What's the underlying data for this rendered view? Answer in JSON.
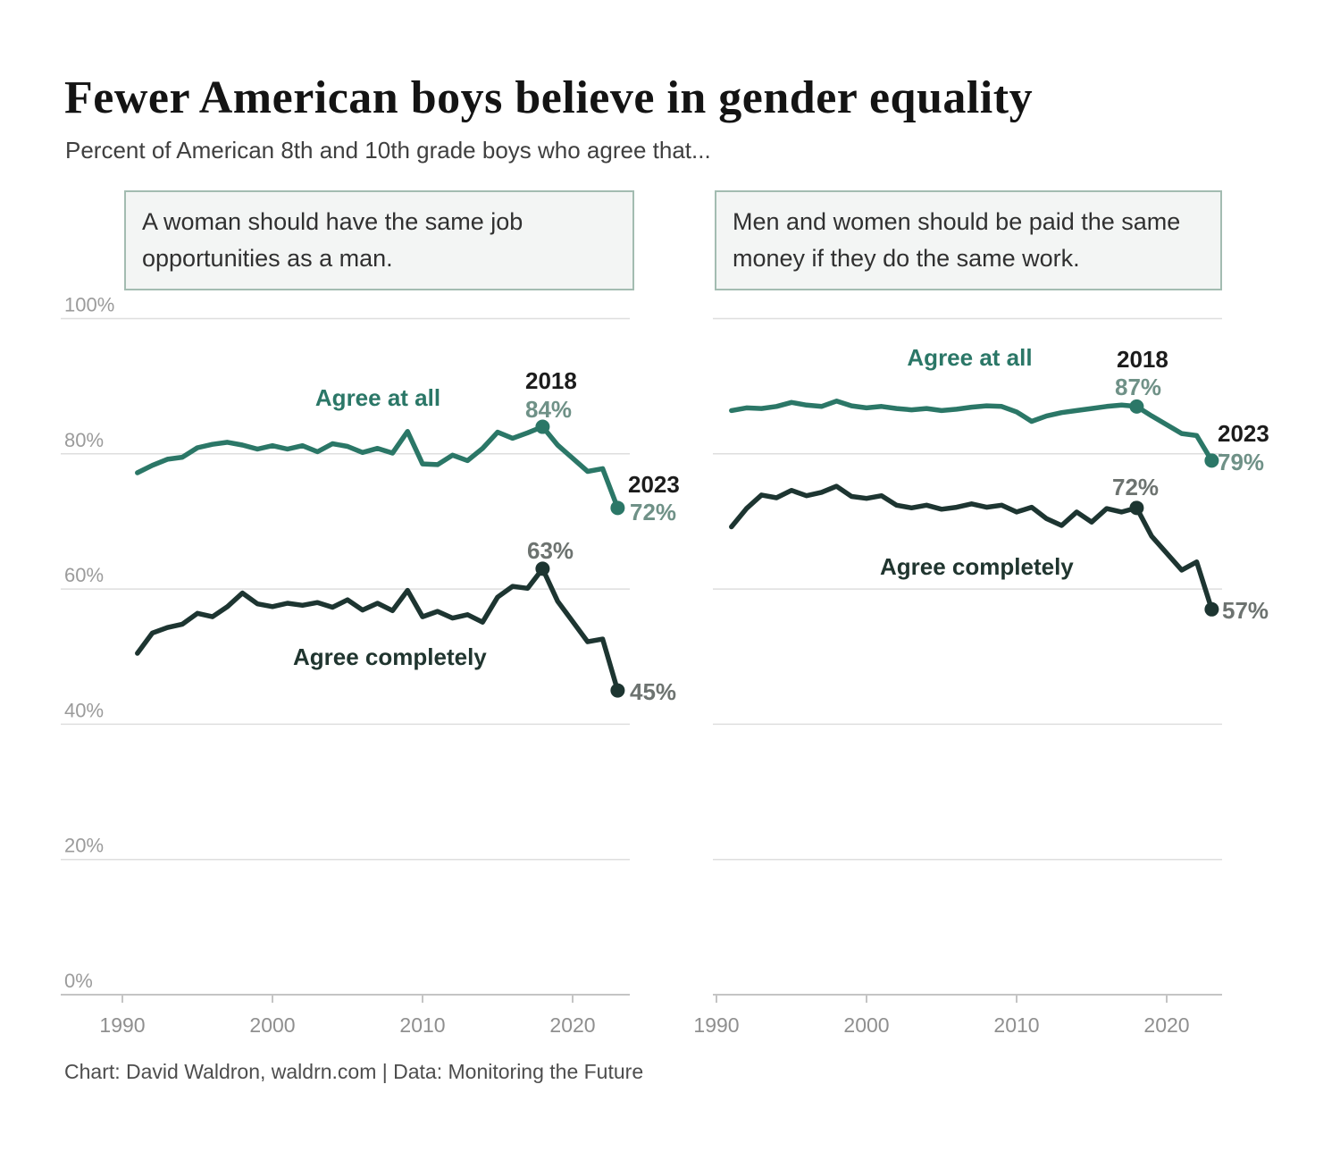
{
  "page": {
    "title": "Fewer American boys believe in gender equality",
    "subtitle": "Percent of American 8th and 10th grade boys who agree that...",
    "footer": "Chart: David Waldron, waldrn.com | Data: Monitoring the Future"
  },
  "colors": {
    "agree_at_all": "#2b7767",
    "agree_completely": "#1d3531",
    "grid": "#dedede",
    "axis": "#c4c4c4",
    "y_tick_label": "#9b9b9b",
    "x_tick_label": "#8f8f8f"
  },
  "chart_data": [
    {
      "type": "line",
      "title": "A woman should have the same job opportunities as a man.",
      "xlabel": "",
      "ylabel": "",
      "xlim": [
        1990,
        2024
      ],
      "ylim": [
        0,
        100
      ],
      "grid": true,
      "x_ticks": [
        1990,
        2000,
        2010,
        2020
      ],
      "y_ticks": [
        100,
        80,
        60,
        40,
        20,
        0
      ],
      "marked_years": [
        2018,
        2023
      ],
      "labels": {
        "series_top": "Agree at all",
        "series_bottom": "Agree completely",
        "peak_year": "2018",
        "peak_top_value": "84%",
        "end_year": "2023",
        "end_top_value": "72%",
        "peak_bottom_value": "63%",
        "end_bottom_value": "45%"
      },
      "series": [
        {
          "name": "Agree at all",
          "color_key": "agree_at_all",
          "points": [
            [
              1991,
              77.2
            ],
            [
              1992,
              78.3
            ],
            [
              1993,
              79.2
            ],
            [
              1994,
              79.5
            ],
            [
              1995,
              80.9
            ],
            [
              1996,
              81.4
            ],
            [
              1997,
              81.7
            ],
            [
              1998,
              81.3
            ],
            [
              1999,
              80.7
            ],
            [
              2000,
              81.2
            ],
            [
              2001,
              80.7
            ],
            [
              2002,
              81.2
            ],
            [
              2003,
              80.3
            ],
            [
              2004,
              81.5
            ],
            [
              2005,
              81.1
            ],
            [
              2006,
              80.2
            ],
            [
              2007,
              80.8
            ],
            [
              2008,
              80.1
            ],
            [
              2009,
              83.3
            ],
            [
              2010,
              78.5
            ],
            [
              2011,
              78.4
            ],
            [
              2012,
              79.8
            ],
            [
              2013,
              79.0
            ],
            [
              2014,
              80.8
            ],
            [
              2015,
              83.2
            ],
            [
              2016,
              82.3
            ],
            [
              2017,
              83.1
            ],
            [
              2018,
              84
            ],
            [
              2019,
              81.3
            ],
            [
              2021,
              77.4
            ],
            [
              2022,
              77.8
            ],
            [
              2023,
              72
            ]
          ]
        },
        {
          "name": "Agree completely",
          "color_key": "agree_completely",
          "points": [
            [
              1991,
              50.5
            ],
            [
              1992,
              53.5
            ],
            [
              1993,
              54.3
            ],
            [
              1994,
              54.8
            ],
            [
              1995,
              56.4
            ],
            [
              1996,
              55.9
            ],
            [
              1997,
              57.4
            ],
            [
              1998,
              59.4
            ],
            [
              1999,
              57.8
            ],
            [
              2000,
              57.4
            ],
            [
              2001,
              57.9
            ],
            [
              2002,
              57.6
            ],
            [
              2003,
              58.0
            ],
            [
              2004,
              57.3
            ],
            [
              2005,
              58.4
            ],
            [
              2006,
              56.9
            ],
            [
              2007,
              57.9
            ],
            [
              2008,
              56.8
            ],
            [
              2009,
              59.8
            ],
            [
              2010,
              55.9
            ],
            [
              2011,
              56.7
            ],
            [
              2012,
              55.7
            ],
            [
              2013,
              56.2
            ],
            [
              2014,
              55.1
            ],
            [
              2015,
              58.8
            ],
            [
              2016,
              60.4
            ],
            [
              2017,
              60.1
            ],
            [
              2018,
              63
            ],
            [
              2019,
              58.2
            ],
            [
              2021,
              52.2
            ],
            [
              2022,
              52.6
            ],
            [
              2023,
              45
            ]
          ]
        }
      ]
    },
    {
      "type": "line",
      "title": "Men and women should be paid the same money if they do the same work.",
      "xlabel": "",
      "ylabel": "",
      "xlim": [
        1990,
        2024
      ],
      "ylim": [
        0,
        100
      ],
      "grid": true,
      "x_ticks": [
        1990,
        2000,
        2010,
        2020
      ],
      "y_ticks": [
        100,
        80,
        60,
        40,
        20,
        0
      ],
      "marked_years": [
        2018,
        2023
      ],
      "labels": {
        "series_top": "Agree at all",
        "series_bottom": "Agree completely",
        "peak_year": "2018",
        "peak_top_value": "87%",
        "end_year": "2023",
        "end_top_value": "79%",
        "peak_bottom_value": "72%",
        "end_bottom_value": "57%"
      },
      "series": [
        {
          "name": "Agree at all",
          "color_key": "agree_at_all",
          "points": [
            [
              1991,
              86.4
            ],
            [
              1992,
              86.8
            ],
            [
              1993,
              86.7
            ],
            [
              1994,
              87.0
            ],
            [
              1995,
              87.6
            ],
            [
              1996,
              87.2
            ],
            [
              1997,
              87.0
            ],
            [
              1998,
              87.8
            ],
            [
              1999,
              87.1
            ],
            [
              2000,
              86.8
            ],
            [
              2001,
              87.0
            ],
            [
              2002,
              86.7
            ],
            [
              2003,
              86.5
            ],
            [
              2004,
              86.7
            ],
            [
              2005,
              86.4
            ],
            [
              2006,
              86.6
            ],
            [
              2007,
              86.9
            ],
            [
              2008,
              87.1
            ],
            [
              2009,
              87.0
            ],
            [
              2010,
              86.2
            ],
            [
              2011,
              84.8
            ],
            [
              2012,
              85.6
            ],
            [
              2013,
              86.1
            ],
            [
              2014,
              86.4
            ],
            [
              2015,
              86.7
            ],
            [
              2016,
              87.0
            ],
            [
              2017,
              87.2
            ],
            [
              2018,
              87
            ],
            [
              2019,
              85.6
            ],
            [
              2021,
              83.0
            ],
            [
              2022,
              82.7
            ],
            [
              2023,
              79
            ]
          ]
        },
        {
          "name": "Agree completely",
          "color_key": "agree_completely",
          "points": [
            [
              1991,
              69.2
            ],
            [
              1992,
              71.9
            ],
            [
              1993,
              73.9
            ],
            [
              1994,
              73.5
            ],
            [
              1995,
              74.6
            ],
            [
              1996,
              73.8
            ],
            [
              1997,
              74.3
            ],
            [
              1998,
              75.2
            ],
            [
              1999,
              73.7
            ],
            [
              2000,
              73.4
            ],
            [
              2001,
              73.8
            ],
            [
              2002,
              72.4
            ],
            [
              2003,
              72.0
            ],
            [
              2004,
              72.4
            ],
            [
              2005,
              71.8
            ],
            [
              2006,
              72.1
            ],
            [
              2007,
              72.6
            ],
            [
              2008,
              72.1
            ],
            [
              2009,
              72.4
            ],
            [
              2010,
              71.4
            ],
            [
              2011,
              72.1
            ],
            [
              2012,
              70.4
            ],
            [
              2013,
              69.4
            ],
            [
              2014,
              71.4
            ],
            [
              2015,
              69.9
            ],
            [
              2016,
              71.9
            ],
            [
              2017,
              71.4
            ],
            [
              2018,
              72
            ],
            [
              2019,
              67.8
            ],
            [
              2021,
              62.8
            ],
            [
              2022,
              64.0
            ],
            [
              2023,
              57
            ]
          ]
        }
      ]
    }
  ]
}
